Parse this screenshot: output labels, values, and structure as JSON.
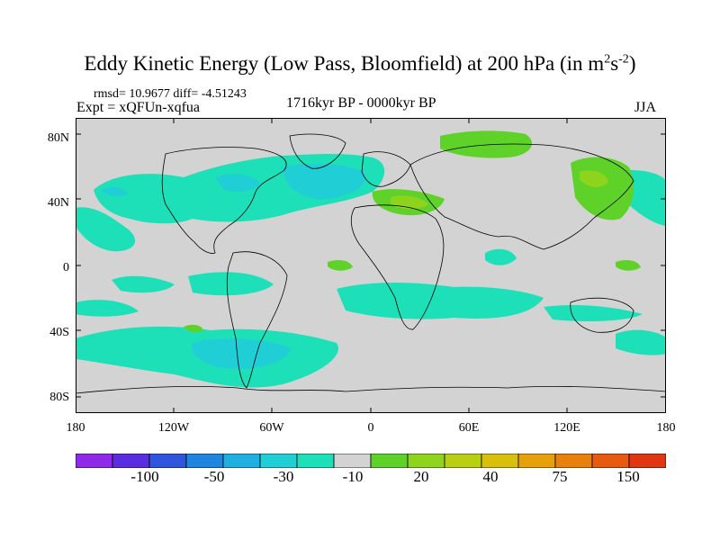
{
  "title": "Eddy Kinetic Energy (Low Pass, Bloomfield) at 200 hPa (in m",
  "title_sup1": "2",
  "title_mid": "s",
  "title_sup2": "-2",
  "title_end": ")",
  "stats": "rmsd= 10.9677 diff= -4.51243",
  "expt": "Expt = xQFUn-xqfua",
  "period": "1716kyr BP - 0000kyr BP",
  "season": "JJA",
  "lat_labels": [
    "80N",
    "40N",
    "0",
    "40S",
    "80S"
  ],
  "lon_labels": [
    "180",
    "120W",
    "60W",
    "0",
    "60E",
    "120E",
    "180"
  ],
  "colorbar": {
    "colors": [
      "#8f2be8",
      "#5a2de0",
      "#2f55dc",
      "#1f86e0",
      "#1fb0e2",
      "#20cfd6",
      "#1ee0b8",
      "#d3d3d3",
      "#5fd22a",
      "#8ed31c",
      "#b8cf14",
      "#d9c00c",
      "#e6a10a",
      "#e8800e",
      "#e65a12",
      "#e03612"
    ],
    "labels": [
      "-100",
      "-50",
      "-30",
      "-10",
      "20",
      "40",
      "75",
      "150"
    ]
  },
  "colors": {
    "land_bg": "#d3d3d3",
    "neg_light": "#1ee0b8",
    "neg_mid": "#20cfd6",
    "pos_light": "#5fd22a",
    "pos_mid": "#8ed31c",
    "coast": "#000000"
  }
}
